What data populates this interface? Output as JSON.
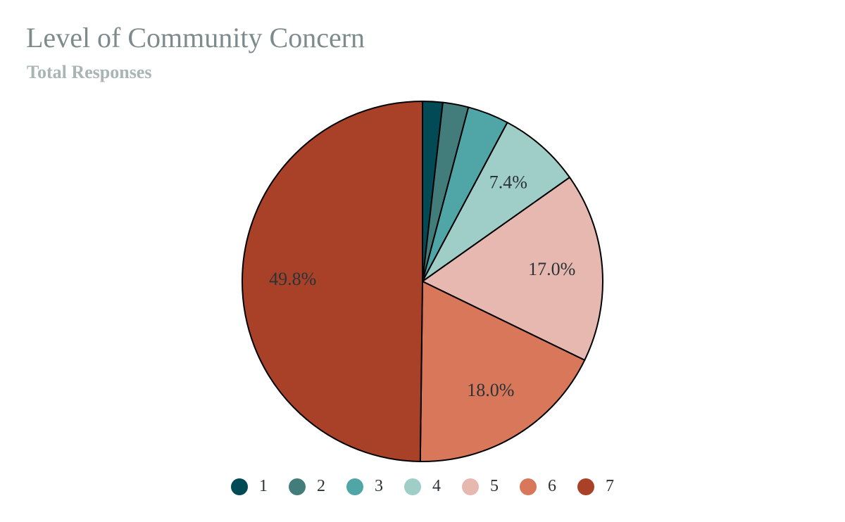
{
  "chart_data": {
    "type": "pie",
    "title": "Level of Community Concern",
    "subtitle": "Total Responses",
    "unit": "%",
    "legend_position": "bottom",
    "slices": [
      {
        "label": "1",
        "value": 1.8,
        "color": "#024a56",
        "value_label": ""
      },
      {
        "label": "2",
        "value": 2.3,
        "color": "#427c7b",
        "value_label": ""
      },
      {
        "label": "3",
        "value": 3.7,
        "color": "#50a5a6",
        "value_label": ""
      },
      {
        "label": "4",
        "value": 7.4,
        "color": "#9ecec7",
        "value_label": "7.4%"
      },
      {
        "label": "5",
        "value": 17.0,
        "color": "#e7b8af",
        "value_label": "17.0%"
      },
      {
        "label": "6",
        "value": 18.0,
        "color": "#d8775a",
        "value_label": "18.0%"
      },
      {
        "label": "7",
        "value": 49.8,
        "color": "#a84128",
        "value_label": "49.8%"
      }
    ]
  }
}
